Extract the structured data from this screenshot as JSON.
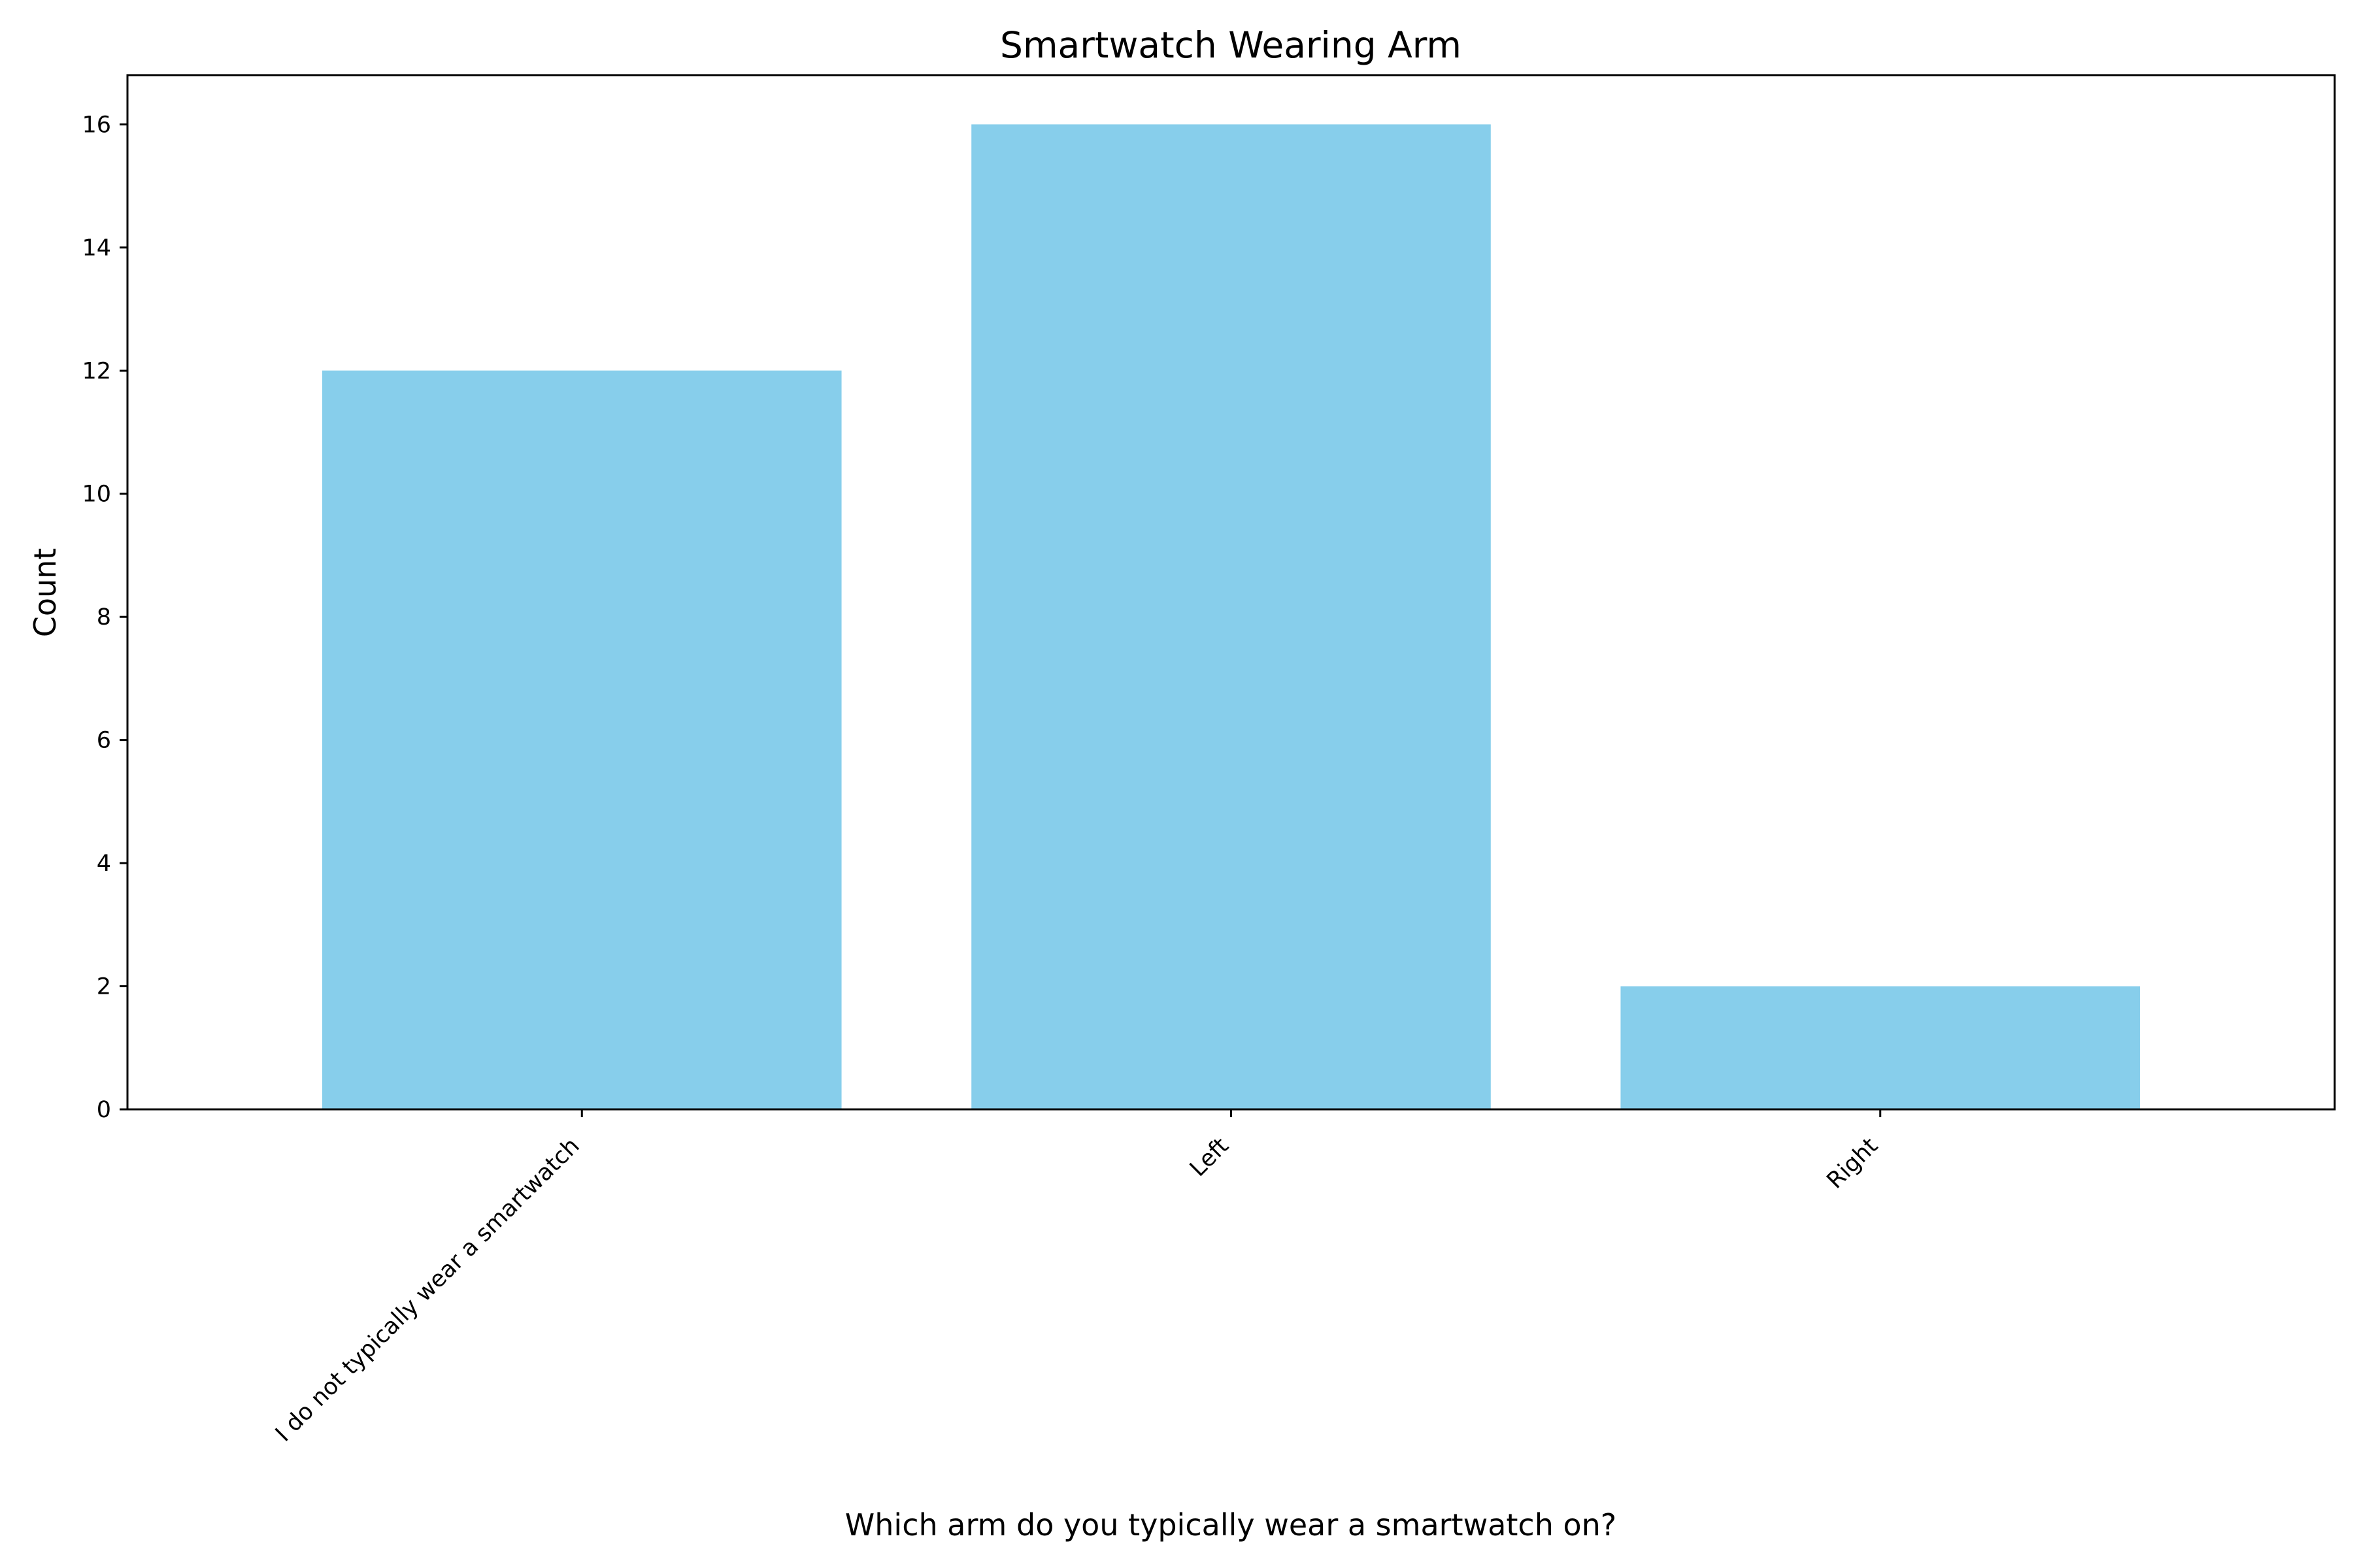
{
  "chart_data": {
    "type": "bar",
    "title": "Smartwatch Wearing Arm",
    "xlabel": "Which arm do you typically wear a smartwatch on?",
    "ylabel": "Count",
    "categories": [
      "I do not typically wear a smartwatch",
      "Left",
      "Right"
    ],
    "values": [
      12,
      16,
      2
    ],
    "ylim": [
      0,
      16.8
    ],
    "yticks": [
      0,
      2,
      4,
      6,
      8,
      10,
      12,
      14,
      16
    ],
    "bar_color": "#87CEEB",
    "grid": false,
    "legend": false
  }
}
